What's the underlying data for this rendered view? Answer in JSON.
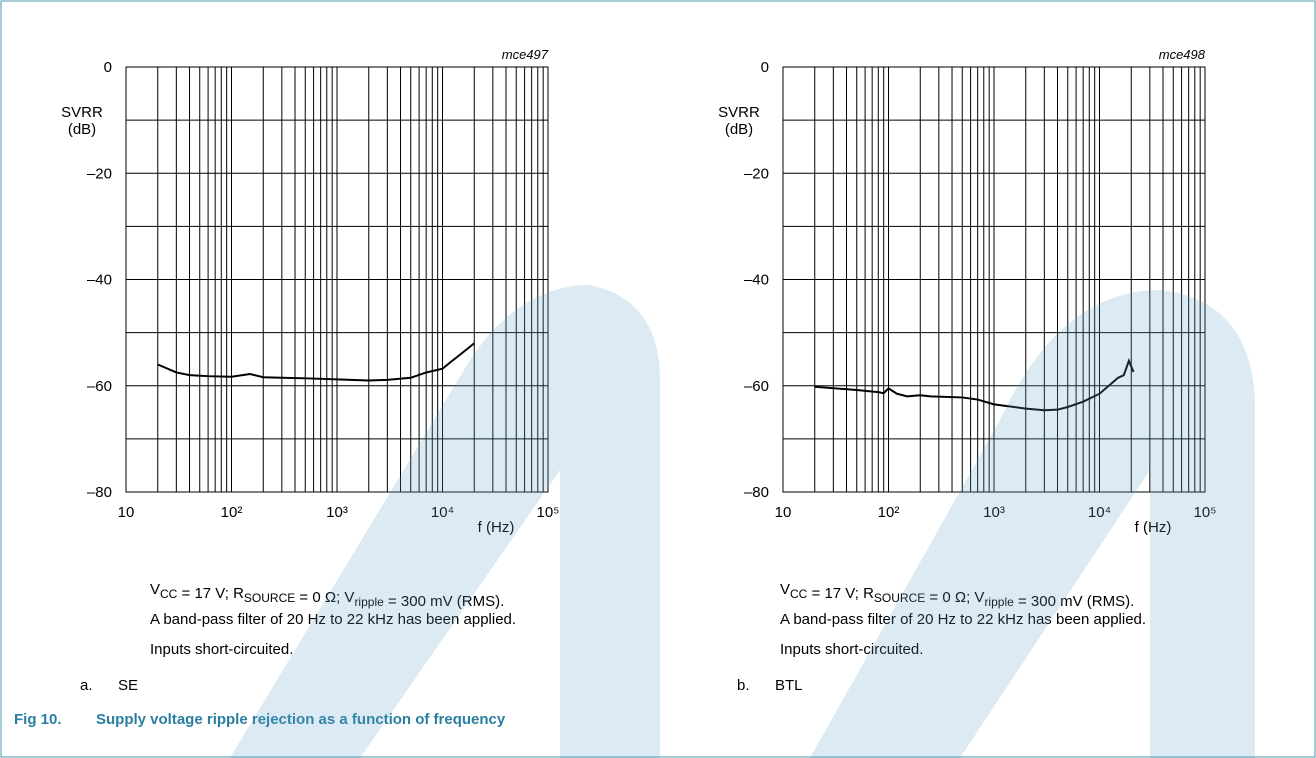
{
  "chart_data": [
    {
      "type": "line",
      "code": "mce497",
      "ylabel": [
        "SVRR",
        "(dB)"
      ],
      "xlabel": "f (Hz)",
      "log_x": true,
      "xlim": [
        10,
        100000
      ],
      "ylim": [
        -80,
        0
      ],
      "xticks": [
        10,
        {
          "value": 100,
          "label": "10²"
        },
        {
          "value": 1000,
          "label": "10³"
        },
        {
          "value": 10000,
          "label": "10⁴"
        },
        {
          "value": 100000,
          "label": "10⁵"
        }
      ],
      "yticks": [
        0,
        {
          "value": -20,
          "label": "–20"
        },
        {
          "value": -40,
          "label": "–40"
        },
        {
          "value": -60,
          "label": "–60"
        },
        {
          "value": -80,
          "label": "–80"
        }
      ],
      "xgrid": [
        20,
        30,
        40,
        50,
        60,
        70,
        80,
        90,
        200,
        300,
        400,
        500,
        600,
        700,
        800,
        900,
        2000,
        3000,
        4000,
        5000,
        6000,
        7000,
        8000,
        9000,
        20000,
        30000,
        40000,
        50000,
        60000,
        70000,
        80000,
        90000
      ],
      "ygrid": [
        -10,
        -30,
        -50,
        -70
      ],
      "grid": true,
      "series": [
        {
          "color": "#000000",
          "x": [
            20,
            30,
            40,
            60,
            100,
            150,
            200,
            300,
            500,
            1000,
            2000,
            3000,
            5000,
            7000,
            10000,
            12000,
            15000,
            20000
          ],
          "values": [
            -56,
            -57.5,
            -58,
            -58.2,
            -58.3,
            -57.8,
            -58.4,
            -58.5,
            -58.6,
            -58.8,
            -59,
            -58.9,
            -58.5,
            -57.5,
            -56.8,
            -55.5,
            -54,
            -52
          ]
        }
      ]
    },
    {
      "type": "line",
      "code": "mce498",
      "ylabel": [
        "SVRR",
        "(dB)"
      ],
      "xlabel": "f (Hz)",
      "log_x": true,
      "xlim": [
        10,
        100000
      ],
      "ylim": [
        -80,
        0
      ],
      "xticks": [
        10,
        {
          "value": 100,
          "label": "10²"
        },
        {
          "value": 1000,
          "label": "10³"
        },
        {
          "value": 10000,
          "label": "10⁴"
        },
        {
          "value": 100000,
          "label": "10⁵"
        }
      ],
      "yticks": [
        0,
        {
          "value": -20,
          "label": "–20"
        },
        {
          "value": -40,
          "label": "–40"
        },
        {
          "value": -60,
          "label": "–60"
        },
        {
          "value": -80,
          "label": "–80"
        }
      ],
      "xgrid": [
        20,
        30,
        40,
        50,
        60,
        70,
        80,
        90,
        200,
        300,
        400,
        500,
        600,
        700,
        800,
        900,
        2000,
        3000,
        4000,
        5000,
        6000,
        7000,
        8000,
        9000,
        20000,
        30000,
        40000,
        50000,
        60000,
        70000,
        80000,
        90000
      ],
      "ygrid": [
        -10,
        -30,
        -50,
        -70
      ],
      "grid": true,
      "series": [
        {
          "color": "#000000",
          "x": [
            20,
            50,
            80,
            90,
            100,
            120,
            150,
            200,
            250,
            500,
            700,
            1000,
            2000,
            3000,
            4000,
            5000,
            7000,
            10000,
            15000,
            17000,
            19000,
            21000
          ],
          "values": [
            -60.2,
            -60.8,
            -61.2,
            -61.4,
            -60.5,
            -61.5,
            -62,
            -61.8,
            -62,
            -62.2,
            -62.6,
            -63.5,
            -64.3,
            -64.6,
            -64.5,
            -64,
            -63,
            -61.5,
            -58.5,
            -58,
            -55.3,
            -57.4
          ]
        }
      ]
    }
  ],
  "panels": [
    {
      "conditions": [
        {
          "t": "V"
        },
        {
          "s": "CC"
        },
        {
          "t": " = 17 V; R"
        },
        {
          "s": "SOURCE"
        },
        {
          "t": " = 0 Ω; V"
        },
        {
          "s": "ripple"
        },
        {
          "t": " = 300 mV (RMS)."
        }
      ],
      "notes": [
        "A band-pass filter of 20 Hz to 22 kHz has been applied.",
        "Inputs short-circuited."
      ],
      "letter": "a.",
      "label": "SE"
    },
    {
      "conditions": [
        {
          "t": "V"
        },
        {
          "s": "CC"
        },
        {
          "t": " = 17 V; R"
        },
        {
          "s": "SOURCE"
        },
        {
          "t": " = 0 Ω; V"
        },
        {
          "s": "ripple"
        },
        {
          "t": " = 300 mV (RMS)."
        }
      ],
      "notes": [
        "A band-pass filter of 20 Hz to 22 kHz has been applied.",
        "Inputs short-circuited."
      ],
      "letter": "b.",
      "label": "BTL"
    }
  ],
  "caption": {
    "number": "Fig 10.",
    "title": "Supply voltage ripple rejection as a function of frequency"
  }
}
